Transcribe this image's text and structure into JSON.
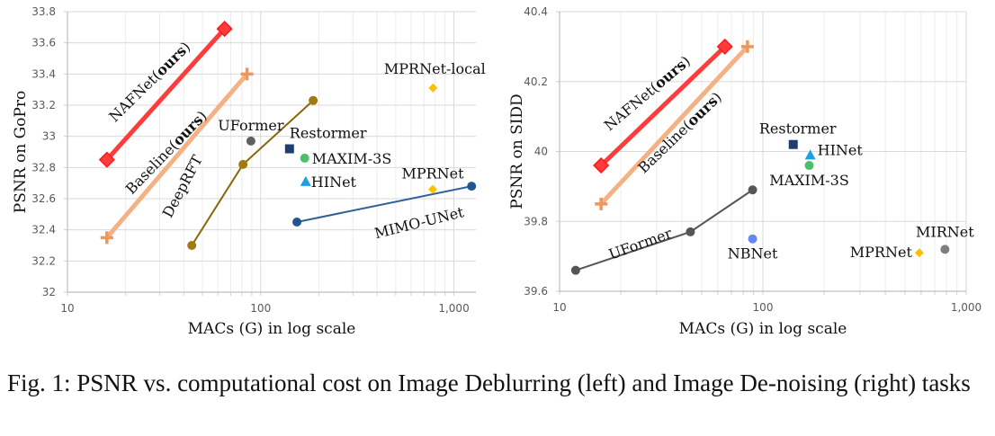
{
  "caption": "Fig. 1: PSNR vs. computational cost on Image Deblurring (left) and Image De-noising (right) tasks",
  "chart_data": [
    {
      "type": "scatter",
      "title": "",
      "xlabel": "MACs (G) in log scale",
      "ylabel": "PSNR on GoPro",
      "xscale": "log",
      "xlim": [
        10,
        1300
      ],
      "ylim": [
        32,
        33.8
      ],
      "xticks": [
        10,
        100,
        1000
      ],
      "xtick_labels": [
        "10",
        "100",
        "1,000"
      ],
      "yticks": [
        32,
        32.2,
        32.4,
        32.6,
        32.8,
        33,
        33.2,
        33.4,
        33.6,
        33.8
      ],
      "ytick_labels": [
        "32",
        "32.2",
        "32.4",
        "32.6",
        "32.8",
        "33",
        "33.2",
        "33.4",
        "33.6",
        "33.8"
      ],
      "grid": true,
      "series": [
        {
          "name": "NAFNet",
          "label": "NAFNet(",
          "label_bold": "ours",
          "label_end": ")",
          "color": "#ff3b3b",
          "marker": "diamond",
          "line": true,
          "line_weight": "thick",
          "x": [
            16,
            65
          ],
          "y": [
            32.85,
            33.69
          ],
          "label_pos": "along-line"
        },
        {
          "name": "Baseline",
          "label": "Baseline(",
          "label_bold": "ours",
          "label_end": ")",
          "color": "#f4b183",
          "marker_color": "#f0965a",
          "marker": "plus",
          "line": true,
          "line_weight": "thick",
          "x": [
            16,
            85
          ],
          "y": [
            32.35,
            33.4
          ],
          "label_pos": "along-line"
        },
        {
          "name": "DeepRFT",
          "label": "DeepRFT",
          "color": "#8b6508",
          "marker_color": "#a07a10",
          "marker": "circle",
          "line": true,
          "x": [
            44,
            81,
            187
          ],
          "y": [
            32.3,
            32.82,
            33.23
          ],
          "label_pos": "along-line"
        },
        {
          "name": "MIMO-UNet",
          "label": "MIMO-UNet",
          "color": "#2f5f9a",
          "marker_color": "#23568f",
          "marker": "circle",
          "line": true,
          "x": [
            154,
            1235
          ],
          "y": [
            32.45,
            32.68
          ],
          "label_pos": "below-line"
        },
        {
          "name": "UFormer",
          "label": "UFormer",
          "color": "#606060",
          "marker": "circle",
          "line": false,
          "x": [
            89
          ],
          "y": [
            32.97
          ],
          "label_pos": "above"
        },
        {
          "name": "Restormer",
          "label": "Restormer",
          "color": "#1f3d6e",
          "marker": "square",
          "line": false,
          "x": [
            141
          ],
          "y": [
            32.92
          ],
          "label_pos": "above-right"
        },
        {
          "name": "MAXIM-3S",
          "label": "MAXIM-3S",
          "color": "#4cbf6a",
          "marker": "circle",
          "line": false,
          "x": [
            169
          ],
          "y": [
            32.86
          ],
          "label_pos": "right"
        },
        {
          "name": "HINet",
          "label": "HINet",
          "color": "#1f9ee8",
          "marker": "triangle",
          "line": false,
          "x": [
            171
          ],
          "y": [
            32.71
          ],
          "label_pos": "right"
        },
        {
          "name": "MPRNet",
          "label": "MPRNet",
          "color": "#ffc000",
          "marker": "diamond-small",
          "line": false,
          "x": [
            777
          ],
          "y": [
            32.66
          ],
          "label_pos": "above"
        },
        {
          "name": "MPRNet-local",
          "label": "MPRNet-local",
          "color": "#ffc000",
          "marker": "diamond-small",
          "line": false,
          "x": [
            780
          ],
          "y": [
            33.31
          ],
          "label_pos": "above"
        }
      ]
    },
    {
      "type": "scatter",
      "title": "",
      "xlabel": "MACs (G) in log scale",
      "ylabel": "PSNR on SIDD",
      "xscale": "log",
      "xlim": [
        10,
        1000
      ],
      "ylim": [
        39.6,
        40.4
      ],
      "xticks": [
        10,
        100,
        1000
      ],
      "xtick_labels": [
        "10",
        "100",
        "1,000"
      ],
      "yticks": [
        39.6,
        39.8,
        40,
        40.2,
        40.4
      ],
      "ytick_labels": [
        "39.6",
        "39.8",
        "40",
        "40.2",
        "40.4"
      ],
      "grid": true,
      "series": [
        {
          "name": "NAFNet",
          "label": "NAFNet(",
          "label_bold": "ours",
          "label_end": ")",
          "color": "#ff3b3b",
          "marker": "diamond",
          "line": true,
          "line_weight": "thick",
          "x": [
            16,
            65
          ],
          "y": [
            39.96,
            40.3
          ],
          "label_pos": "along-line"
        },
        {
          "name": "Baseline",
          "label": "Baseline(",
          "label_bold": "ours",
          "label_end": ")",
          "color": "#f4b183",
          "marker_color": "#f0965a",
          "marker": "plus",
          "line": true,
          "line_weight": "thick",
          "x": [
            16,
            84
          ],
          "y": [
            39.85,
            40.3
          ],
          "label_pos": "below-line"
        },
        {
          "name": "UFormer",
          "label": "UFormer",
          "color": "#555555",
          "marker": "circle",
          "line": true,
          "x": [
            12,
            44,
            89
          ],
          "y": [
            39.66,
            39.77,
            39.89
          ],
          "label_pos": "along-line"
        },
        {
          "name": "NBNet",
          "label": "NBNet",
          "color": "#6a86f0",
          "marker": "circle",
          "line": false,
          "x": [
            89
          ],
          "y": [
            39.75
          ],
          "label_pos": "below"
        },
        {
          "name": "Restormer",
          "label": "Restormer",
          "color": "#1f3d6e",
          "marker": "square",
          "line": false,
          "x": [
            141
          ],
          "y": [
            40.02
          ],
          "label_pos": "above"
        },
        {
          "name": "HINet",
          "label": "HINet",
          "color": "#1f9ee8",
          "marker": "triangle",
          "line": false,
          "x": [
            171
          ],
          "y": [
            39.99
          ],
          "label_pos": "right"
        },
        {
          "name": "MAXIM-3S",
          "label": "MAXIM-3S",
          "color": "#4cbf6a",
          "marker": "circle",
          "line": false,
          "x": [
            169
          ],
          "y": [
            39.96
          ],
          "label_pos": "below"
        },
        {
          "name": "MPRNet",
          "label": "MPRNet",
          "color": "#ffc000",
          "marker": "diamond-small",
          "line": false,
          "x": [
            588
          ],
          "y": [
            39.71
          ],
          "label_pos": "left"
        },
        {
          "name": "MIRNet",
          "label": "MIRNet",
          "color": "#7f7f7f",
          "marker": "circle",
          "line": false,
          "x": [
            786
          ],
          "y": [
            39.72
          ],
          "label_pos": "above"
        }
      ]
    }
  ]
}
